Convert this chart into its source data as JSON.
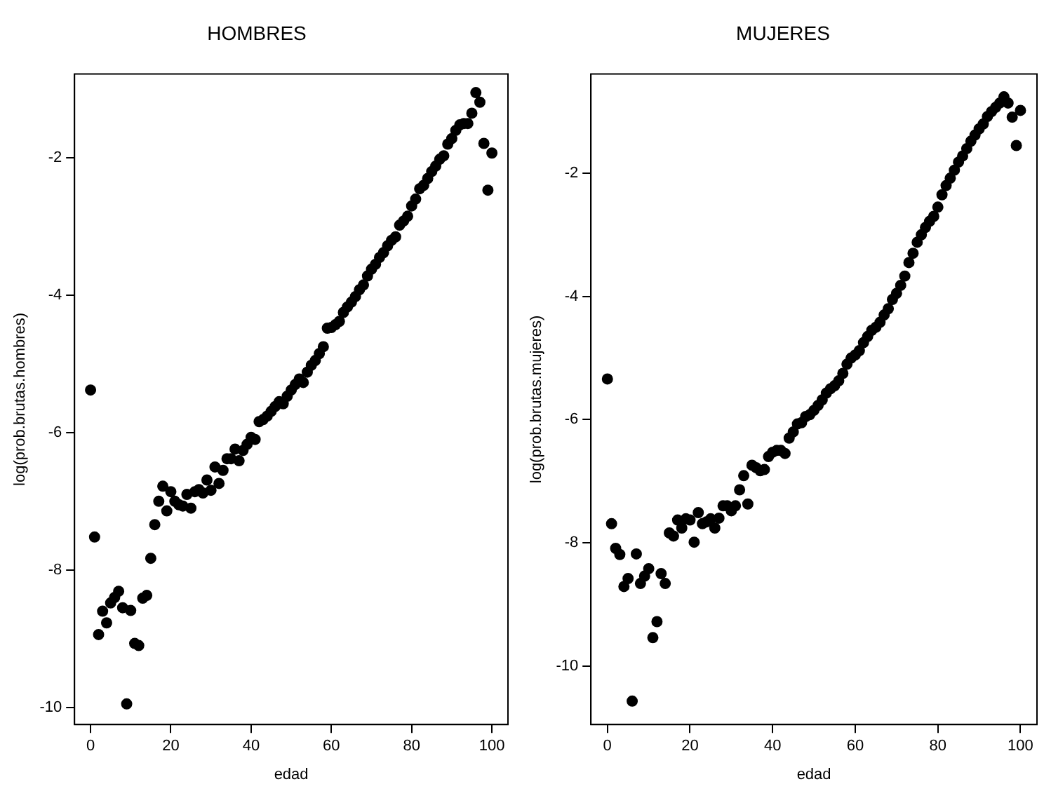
{
  "chart_data": [
    {
      "type": "scatter",
      "title": "HOMBRES",
      "xlabel": "edad",
      "ylabel": "log(prob.brutas.hombres)",
      "marker": "circle",
      "grid": false,
      "xlim": [
        -4,
        104
      ],
      "ylim": [
        -10.25,
        -0.78
      ],
      "xticks": [
        0,
        20,
        40,
        60,
        80,
        100
      ],
      "yticks": [
        -10,
        -8,
        -6,
        -4,
        -2
      ],
      "x": [
        0,
        1,
        2,
        3,
        4,
        5,
        6,
        7,
        8,
        9,
        10,
        11,
        12,
        13,
        14,
        15,
        16,
        17,
        18,
        19,
        20,
        21,
        22,
        23,
        24,
        25,
        26,
        27,
        28,
        29,
        30,
        31,
        32,
        33,
        34,
        35,
        36,
        37,
        38,
        39,
        40,
        41,
        42,
        43,
        44,
        45,
        46,
        47,
        48,
        49,
        50,
        51,
        52,
        53,
        54,
        55,
        56,
        57,
        58,
        59,
        60,
        61,
        62,
        63,
        64,
        65,
        66,
        67,
        68,
        69,
        70,
        71,
        72,
        73,
        74,
        75,
        76,
        77,
        78,
        79,
        80,
        81,
        82,
        83,
        84,
        85,
        86,
        87,
        88,
        89,
        90,
        91,
        92,
        93,
        94,
        95,
        96,
        97,
        98,
        99,
        100
      ],
      "series": [
        {
          "color": "#000000",
          "values": [
            -5.38,
            -7.52,
            -8.94,
            -8.6,
            -8.77,
            -8.48,
            -8.4,
            -8.31,
            -8.55,
            -9.95,
            -8.59,
            -9.07,
            -9.1,
            -8.41,
            -8.37,
            -7.83,
            -7.34,
            -7.0,
            -6.78,
            -7.14,
            -6.86,
            -7.0,
            -7.05,
            -7.07,
            -6.9,
            -7.1,
            -6.86,
            -6.83,
            -6.88,
            -6.69,
            -6.84,
            -6.5,
            -6.74,
            -6.55,
            -6.38,
            -6.38,
            -6.24,
            -6.41,
            -6.26,
            -6.17,
            -6.07,
            -6.1,
            -5.84,
            -5.81,
            -5.76,
            -5.69,
            -5.62,
            -5.55,
            -5.58,
            -5.47,
            -5.38,
            -5.3,
            -5.22,
            -5.27,
            -5.12,
            -5.02,
            -4.95,
            -4.85,
            -4.75,
            -4.48,
            -4.47,
            -4.43,
            -4.38,
            -4.25,
            -4.17,
            -4.1,
            -4.02,
            -3.92,
            -3.85,
            -3.72,
            -3.62,
            -3.55,
            -3.45,
            -3.38,
            -3.28,
            -3.2,
            -3.15,
            -2.98,
            -2.92,
            -2.85,
            -2.7,
            -2.6,
            -2.45,
            -2.4,
            -2.3,
            -2.2,
            -2.12,
            -2.02,
            -1.97,
            -1.8,
            -1.72,
            -1.6,
            -1.52,
            -1.5,
            -1.5,
            -1.35,
            -1.05,
            -1.19,
            -1.79,
            -2.47,
            -1.93
          ]
        }
      ]
    },
    {
      "type": "scatter",
      "title": "MUJERES",
      "xlabel": "edad",
      "ylabel": "log(prob.brutas.mujeres)",
      "marker": "circle",
      "grid": false,
      "xlim": [
        -4,
        104
      ],
      "ylim": [
        -10.95,
        -0.39
      ],
      "xticks": [
        0,
        20,
        40,
        60,
        80,
        100
      ],
      "yticks": [
        -10,
        -8,
        -6,
        -4,
        -2
      ],
      "x": [
        0,
        1,
        2,
        3,
        4,
        5,
        6,
        7,
        8,
        9,
        10,
        11,
        12,
        13,
        14,
        15,
        16,
        17,
        18,
        19,
        20,
        21,
        22,
        23,
        24,
        25,
        26,
        27,
        28,
        29,
        30,
        31,
        32,
        33,
        34,
        35,
        36,
        37,
        38,
        39,
        40,
        41,
        42,
        43,
        44,
        45,
        46,
        47,
        48,
        49,
        50,
        51,
        52,
        53,
        54,
        55,
        56,
        57,
        58,
        59,
        60,
        61,
        62,
        63,
        64,
        65,
        66,
        67,
        68,
        69,
        70,
        71,
        72,
        73,
        74,
        75,
        76,
        77,
        78,
        79,
        80,
        81,
        82,
        83,
        84,
        85,
        86,
        87,
        88,
        89,
        90,
        91,
        92,
        93,
        94,
        95,
        96,
        97,
        98,
        99,
        100
      ],
      "series": [
        {
          "color": "#000000",
          "values": [
            -5.34,
            -7.69,
            -8.09,
            -8.19,
            -8.71,
            -8.58,
            -10.57,
            -8.18,
            -8.66,
            -8.54,
            -8.42,
            -9.54,
            -9.28,
            -8.5,
            -8.66,
            -7.84,
            -7.89,
            -7.63,
            -7.76,
            -7.61,
            -7.63,
            -7.99,
            -7.51,
            -7.69,
            -7.66,
            -7.61,
            -7.76,
            -7.6,
            -7.4,
            -7.4,
            -7.48,
            -7.4,
            -7.14,
            -6.91,
            -7.37,
            -6.74,
            -6.78,
            -6.83,
            -6.81,
            -6.6,
            -6.53,
            -6.5,
            -6.5,
            -6.55,
            -6.3,
            -6.2,
            -6.07,
            -6.05,
            -5.95,
            -5.92,
            -5.85,
            -5.77,
            -5.68,
            -5.57,
            -5.5,
            -5.45,
            -5.37,
            -5.25,
            -5.1,
            -5.0,
            -4.95,
            -4.88,
            -4.75,
            -4.65,
            -4.55,
            -4.5,
            -4.42,
            -4.3,
            -4.2,
            -4.05,
            -3.95,
            -3.82,
            -3.67,
            -3.45,
            -3.3,
            -3.12,
            -3.0,
            -2.88,
            -2.78,
            -2.7,
            -2.55,
            -2.35,
            -2.2,
            -2.08,
            -1.95,
            -1.82,
            -1.72,
            -1.6,
            -1.48,
            -1.38,
            -1.28,
            -1.2,
            -1.08,
            -1.0,
            -0.93,
            -0.86,
            -0.76,
            -0.86,
            -1.09,
            -1.55,
            -0.98
          ]
        }
      ]
    }
  ]
}
